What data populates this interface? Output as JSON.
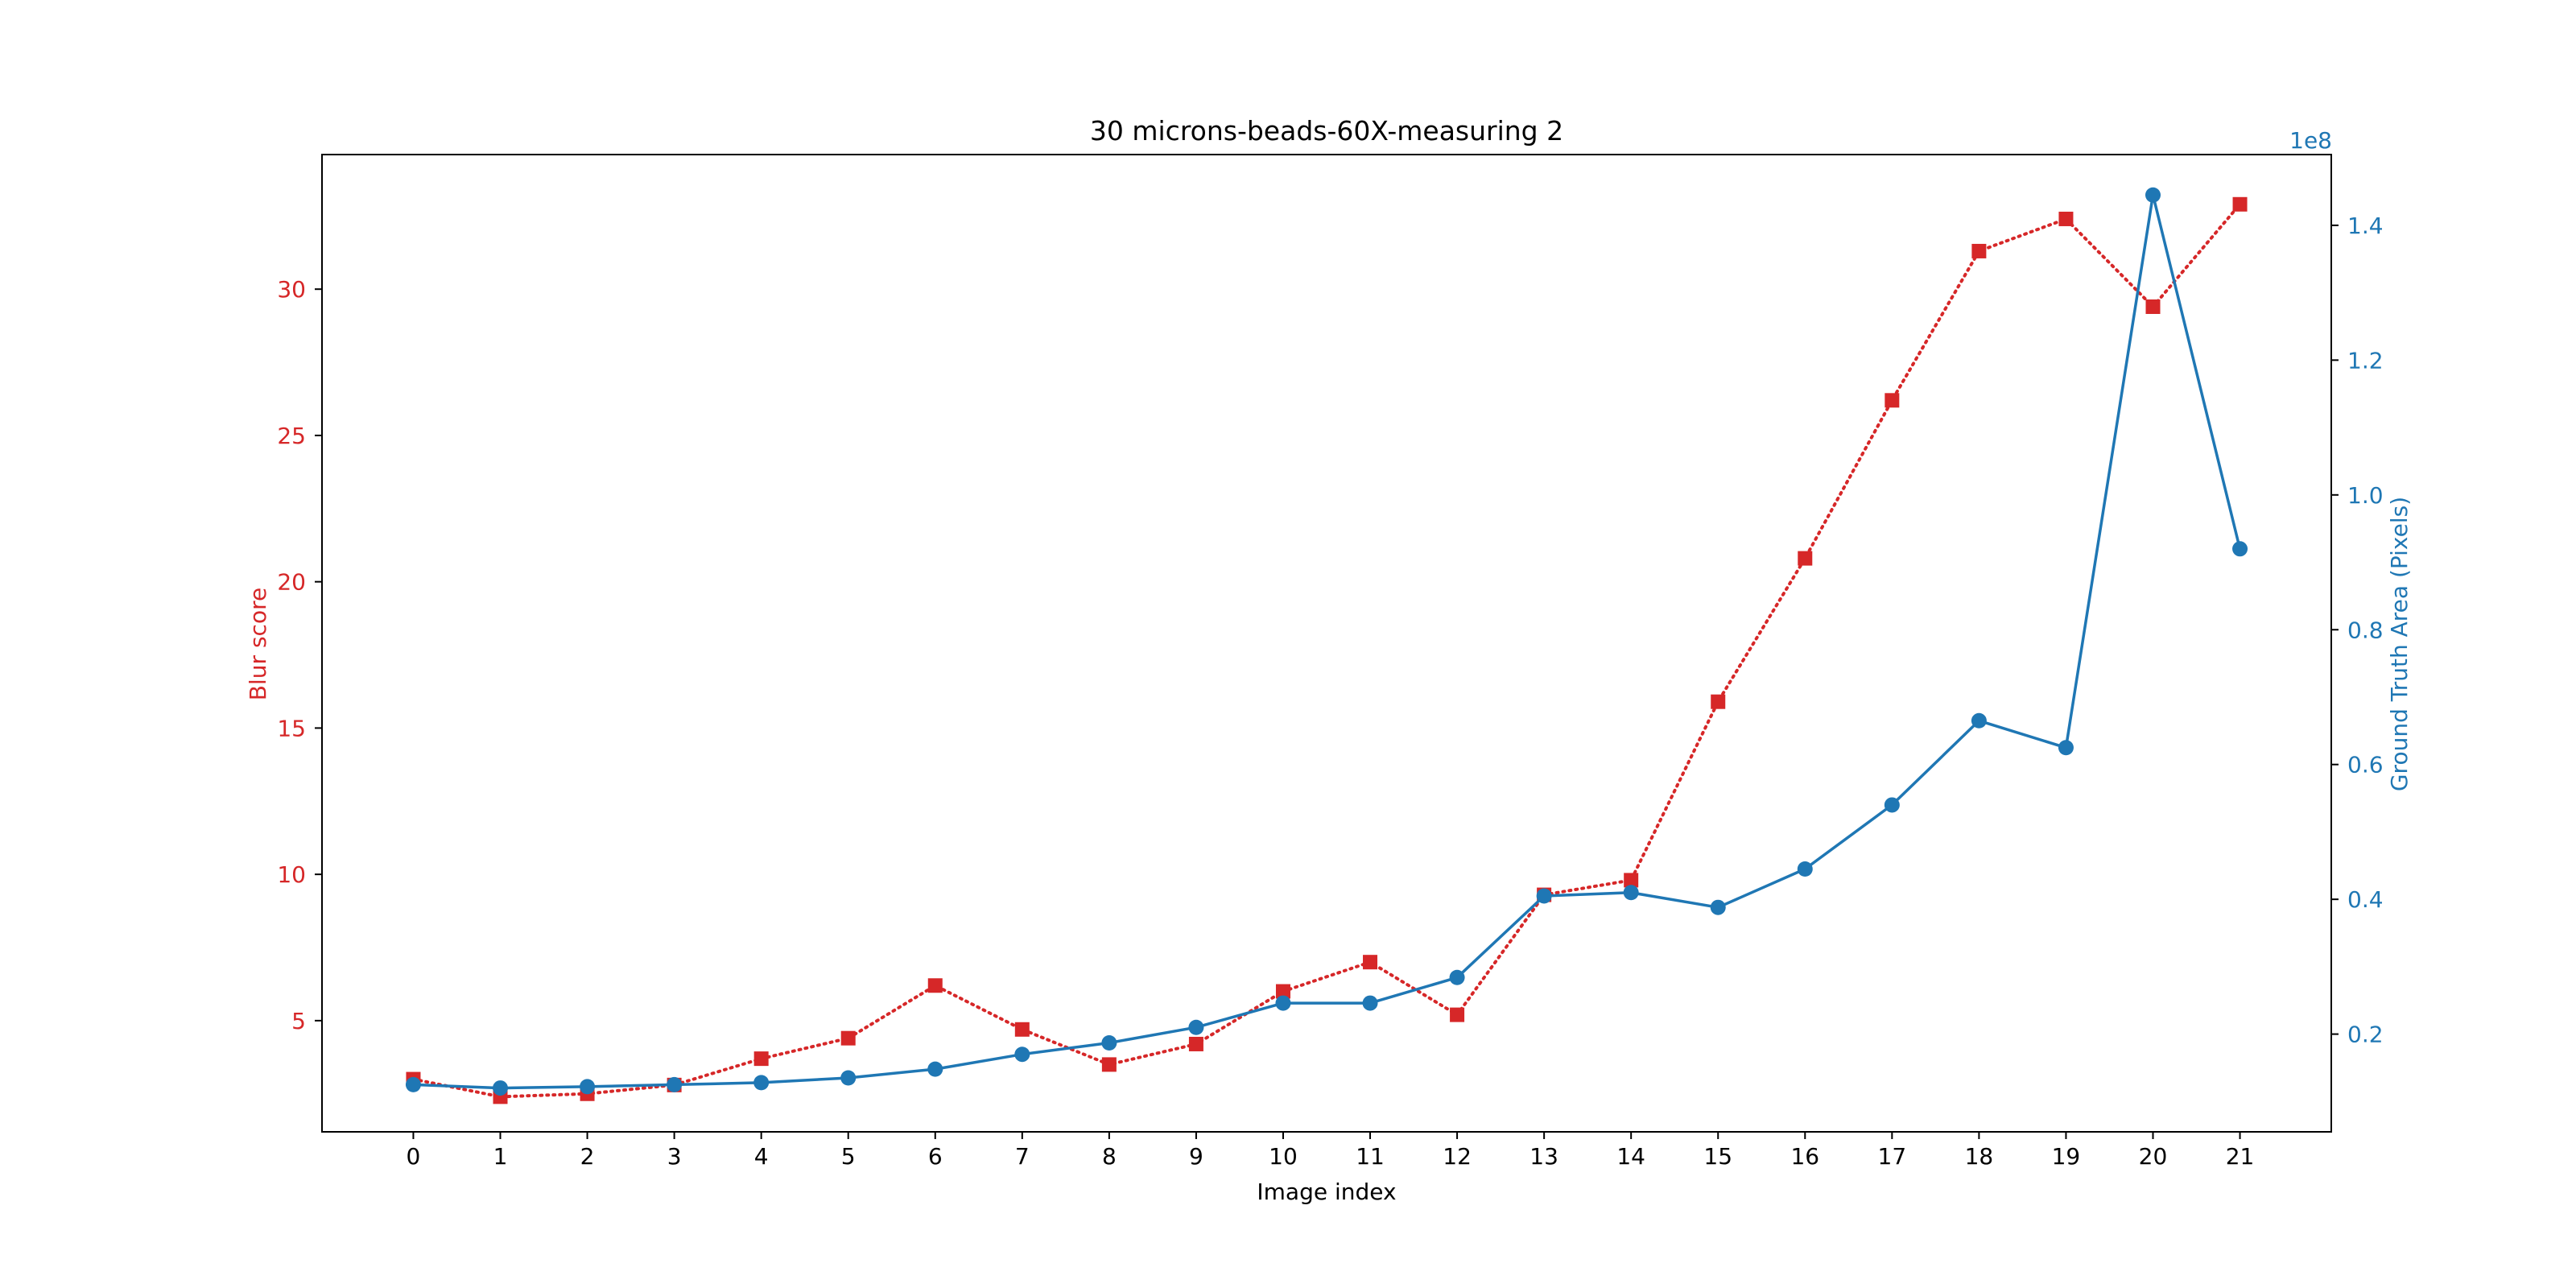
{
  "chart_data": {
    "type": "line",
    "title": "30 microns-beads-60X-measuring 2",
    "xlabel": "Image index",
    "ylabel_left": "Blur score",
    "ylabel_right": "Ground Truth Area (Pixels)",
    "right_axis_multiplier": "1e8",
    "x": [
      0,
      1,
      2,
      3,
      4,
      5,
      6,
      7,
      8,
      9,
      10,
      11,
      12,
      13,
      14,
      15,
      16,
      17,
      18,
      19,
      20,
      21
    ],
    "x_ticks": [
      "0",
      "1",
      "2",
      "3",
      "4",
      "5",
      "6",
      "7",
      "8",
      "9",
      "10",
      "11",
      "12",
      "13",
      "14",
      "15",
      "16",
      "17",
      "18",
      "19",
      "20",
      "21"
    ],
    "xlim": [
      -1.05,
      22.05
    ],
    "ylim_left": [
      1.2,
      34.6
    ],
    "yticks_left": [
      "5",
      "10",
      "15",
      "20",
      "25",
      "30"
    ],
    "ylim_right": [
      0.055,
      1.505
    ],
    "yticks_right": [
      "0.2",
      "0.4",
      "0.6",
      "0.8",
      "1.0",
      "1.2",
      "1.4"
    ],
    "grid": false,
    "series": [
      {
        "axis": "left",
        "color": "#d62728",
        "line_style": "dotted",
        "marker": "square",
        "values": [
          3.0,
          2.4,
          2.5,
          2.8,
          3.7,
          4.4,
          6.2,
          4.7,
          3.5,
          4.2,
          6.0,
          7.0,
          5.2,
          9.3,
          9.8,
          15.9,
          20.8,
          26.2,
          31.3,
          32.4,
          29.4,
          32.9
        ]
      },
      {
        "axis": "right",
        "color": "#1f77b4",
        "line_style": "solid",
        "marker": "circle",
        "values": [
          0.125,
          0.12,
          0.122,
          0.125,
          0.128,
          0.135,
          0.148,
          0.17,
          0.187,
          0.21,
          0.246,
          0.246,
          0.284,
          0.405,
          0.41,
          0.388,
          0.445,
          0.54,
          0.665,
          0.625,
          1.445,
          0.92
        ]
      }
    ]
  }
}
